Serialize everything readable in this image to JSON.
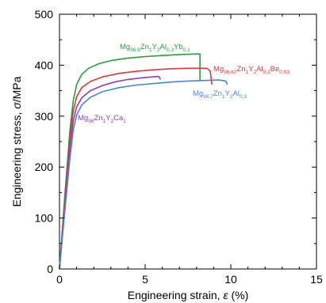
{
  "chart_data": {
    "type": "line",
    "title": "",
    "xlabel": "Engineering strain, ",
    "xlabel_symbol": "ε",
    "xlabel_unit": " (%)",
    "ylabel": "Engineering stress, ",
    "ylabel_symbol": "σ",
    "ylabel_unit": "/MPa",
    "xlim": [
      0,
      15
    ],
    "ylim": [
      0,
      500
    ],
    "xticks": [
      "0",
      "5",
      "10",
      "15"
    ],
    "yticks": [
      "0",
      "100",
      "200",
      "300",
      "400",
      "500"
    ],
    "grid": false,
    "series": [
      {
        "name": "Mg96.6Zn1Y2Al0.3Yb0.1",
        "label_parts": [
          {
            "t": "Mg",
            "sub": false
          },
          {
            "t": "96.6",
            "sub": true
          },
          {
            "t": "Zn",
            "sub": false
          },
          {
            "t": "1",
            "sub": true
          },
          {
            "t": "Y",
            "sub": false
          },
          {
            "t": "2",
            "sub": true
          },
          {
            "t": "Al",
            "sub": false
          },
          {
            "t": "0.3",
            "sub": true
          },
          {
            "t": "Yb",
            "sub": false
          },
          {
            "t": "0.1",
            "sub": true
          }
        ],
        "color": "#2e9a3c",
        "points": [
          [
            0,
            0
          ],
          [
            0.3,
            140
          ],
          [
            0.6,
            270
          ],
          [
            0.8,
            330
          ],
          [
            1.0,
            362
          ],
          [
            1.3,
            382
          ],
          [
            1.7,
            394
          ],
          [
            2.3,
            403
          ],
          [
            3.0,
            409
          ],
          [
            4.0,
            414
          ],
          [
            5.0,
            417
          ],
          [
            6.0,
            419
          ],
          [
            7.0,
            421
          ],
          [
            8.0,
            422
          ],
          [
            8.2,
            422
          ],
          [
            8.2,
            370
          ]
        ]
      },
      {
        "name": "Mg96.67Zn1Y2Al0.3Be0.03",
        "label_parts": [
          {
            "t": "Mg",
            "sub": false
          },
          {
            "t": "96.67",
            "sub": true
          },
          {
            "t": "Zn",
            "sub": false
          },
          {
            "t": "1",
            "sub": true
          },
          {
            "t": "Y",
            "sub": false
          },
          {
            "t": "2",
            "sub": true
          },
          {
            "t": "Al",
            "sub": false
          },
          {
            "t": "0.3",
            "sub": true
          },
          {
            "t": "Be",
            "sub": false
          },
          {
            "t": "0.03",
            "sub": true
          }
        ],
        "color": "#e0353b",
        "points": [
          [
            0,
            0
          ],
          [
            0.3,
            130
          ],
          [
            0.6,
            255
          ],
          [
            0.8,
            310
          ],
          [
            1.0,
            338
          ],
          [
            1.3,
            356
          ],
          [
            1.8,
            368
          ],
          [
            2.5,
            377
          ],
          [
            3.5,
            384
          ],
          [
            4.5,
            388
          ],
          [
            5.5,
            391
          ],
          [
            6.5,
            393
          ],
          [
            7.5,
            394
          ],
          [
            8.6,
            394
          ],
          [
            8.8,
            388
          ],
          [
            8.9,
            362
          ]
        ]
      },
      {
        "name": "Mg96Zn1Y2Ca1",
        "label_parts": [
          {
            "t": "Mg",
            "sub": false
          },
          {
            "t": "96",
            "sub": true
          },
          {
            "t": "Zn",
            "sub": false
          },
          {
            "t": "1",
            "sub": true
          },
          {
            "t": "Y",
            "sub": false
          },
          {
            "t": "2",
            "sub": true
          },
          {
            "t": "Ca",
            "sub": false
          },
          {
            "t": "1",
            "sub": true
          }
        ],
        "color": "#8a3fb8",
        "points": [
          [
            0,
            0
          ],
          [
            0.3,
            120
          ],
          [
            0.6,
            235
          ],
          [
            0.8,
            290
          ],
          [
            1.0,
            318
          ],
          [
            1.3,
            336
          ],
          [
            1.8,
            350
          ],
          [
            2.5,
            360
          ],
          [
            3.2,
            367
          ],
          [
            4.0,
            372
          ],
          [
            5.0,
            376
          ],
          [
            5.8,
            378
          ],
          [
            5.9,
            372
          ]
        ]
      },
      {
        "name": "Mg96.7Zn1Y2Al0.3",
        "label_parts": [
          {
            "t": "Mg",
            "sub": false
          },
          {
            "t": "96.7",
            "sub": true
          },
          {
            "t": "Zn",
            "sub": false
          },
          {
            "t": "1",
            "sub": true
          },
          {
            "t": "Y",
            "sub": false
          },
          {
            "t": "2",
            "sub": true
          },
          {
            "t": "Al",
            "sub": false
          },
          {
            "t": "0.3",
            "sub": true
          }
        ],
        "color": "#4a86d0",
        "points": [
          [
            0,
            0
          ],
          [
            0.3,
            110
          ],
          [
            0.6,
            215
          ],
          [
            0.8,
            272
          ],
          [
            1.0,
            302
          ],
          [
            1.3,
            322
          ],
          [
            1.8,
            337
          ],
          [
            2.5,
            348
          ],
          [
            3.5,
            356
          ],
          [
            4.5,
            361
          ],
          [
            5.5,
            364
          ],
          [
            6.5,
            367
          ],
          [
            7.5,
            369
          ],
          [
            8.5,
            370
          ],
          [
            9.3,
            371
          ],
          [
            9.7,
            369
          ],
          [
            9.8,
            362
          ]
        ]
      }
    ]
  }
}
